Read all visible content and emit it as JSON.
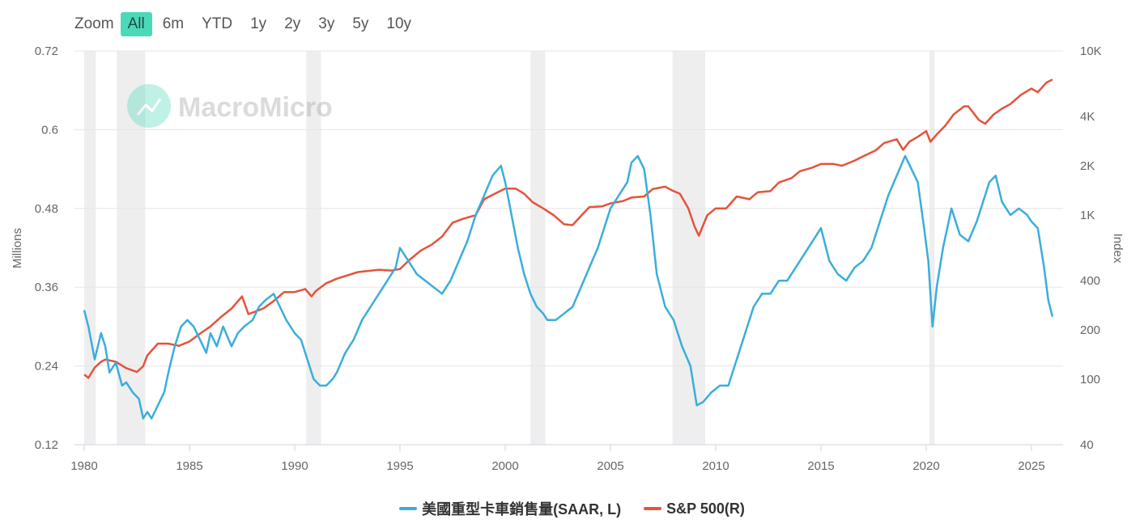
{
  "zoom": {
    "label": "Zoom",
    "buttons": [
      {
        "label": "All",
        "active": true
      },
      {
        "label": "6m",
        "active": false
      },
      {
        "label": "YTD",
        "active": false
      },
      {
        "label": "1y",
        "active": false
      },
      {
        "label": "2y",
        "active": false
      },
      {
        "label": "3y",
        "active": false
      },
      {
        "label": "5y",
        "active": false
      },
      {
        "label": "10y",
        "active": false
      }
    ]
  },
  "watermark": "MacroMicro",
  "colors": {
    "truck": "#3aaedb",
    "sp500": "#e4533b",
    "recession": "#eeeeee",
    "grid": "#e6e6e6"
  },
  "chart_data": {
    "type": "line",
    "xlabel": "",
    "x_ticks": [
      "1980",
      "1985",
      "1990",
      "1995",
      "2000",
      "2005",
      "2010",
      "2015",
      "2020",
      "2025"
    ],
    "x_range": [
      1980.0,
      2026.5
    ],
    "y_left": {
      "label": "Millions",
      "range": [
        0.12,
        0.72
      ],
      "ticks": [
        "0.12",
        "0.24",
        "0.36",
        "0.48",
        "0.6",
        "0.72"
      ]
    },
    "y_right": {
      "label": "Index",
      "scale": "log",
      "range": [
        40,
        10000
      ],
      "ticks": [
        "40",
        "100",
        "200",
        "400",
        "1K",
        "2K",
        "4K",
        "10K"
      ],
      "tick_values": [
        40,
        100,
        200,
        400,
        1000,
        2000,
        4000,
        10000
      ]
    },
    "recessions": [
      [
        1980.0,
        1980.55
      ],
      [
        1981.55,
        1982.9
      ],
      [
        1990.55,
        1991.25
      ],
      [
        2001.2,
        2001.9
      ],
      [
        2007.95,
        2009.5
      ],
      [
        2020.15,
        2020.4
      ]
    ],
    "series": [
      {
        "name": "美國重型卡車銷售量(SAAR, L)",
        "axis": "left",
        "x": [
          1980.0,
          1980.2,
          1980.5,
          1980.8,
          1981.0,
          1981.2,
          1981.5,
          1981.8,
          1982.0,
          1982.3,
          1982.6,
          1982.8,
          1983.0,
          1983.2,
          1983.5,
          1983.8,
          1984.0,
          1984.3,
          1984.6,
          1984.9,
          1985.2,
          1985.5,
          1985.8,
          1986.0,
          1986.3,
          1986.6,
          1987.0,
          1987.3,
          1987.6,
          1988.0,
          1988.3,
          1988.6,
          1989.0,
          1989.3,
          1989.6,
          1990.0,
          1990.3,
          1990.6,
          1990.9,
          1991.2,
          1991.5,
          1991.8,
          1992.0,
          1992.4,
          1992.8,
          1993.2,
          1993.6,
          1994.0,
          1994.4,
          1994.8,
          1995.0,
          1995.4,
          1995.8,
          1996.2,
          1996.6,
          1997.0,
          1997.4,
          1997.8,
          1998.2,
          1998.6,
          1999.0,
          1999.4,
          1999.8,
          2000.0,
          2000.3,
          2000.6,
          2000.9,
          2001.2,
          2001.5,
          2001.8,
          2002.0,
          2002.4,
          2002.8,
          2003.2,
          2003.6,
          2004.0,
          2004.4,
          2004.8,
          2005.0,
          2005.4,
          2005.8,
          2006.0,
          2006.3,
          2006.6,
          2006.9,
          2007.2,
          2007.6,
          2008.0,
          2008.4,
          2008.8,
          2009.1,
          2009.4,
          2009.8,
          2010.2,
          2010.6,
          2011.0,
          2011.4,
          2011.8,
          2012.2,
          2012.6,
          2013.0,
          2013.4,
          2013.8,
          2014.2,
          2014.6,
          2015.0,
          2015.4,
          2015.8,
          2016.2,
          2016.6,
          2017.0,
          2017.4,
          2017.8,
          2018.2,
          2018.6,
          2019.0,
          2019.3,
          2019.6,
          2019.9,
          2020.1,
          2020.3,
          2020.5,
          2020.8,
          2021.2,
          2021.6,
          2022.0,
          2022.4,
          2022.8,
          2023.0,
          2023.3,
          2023.6,
          2024.0,
          2024.4,
          2024.8,
          2025.0,
          2025.3,
          2025.6,
          2025.8,
          2026.0
        ],
        "values": [
          0.325,
          0.3,
          0.25,
          0.29,
          0.27,
          0.23,
          0.245,
          0.21,
          0.215,
          0.2,
          0.19,
          0.16,
          0.17,
          0.16,
          0.18,
          0.2,
          0.23,
          0.27,
          0.3,
          0.31,
          0.3,
          0.28,
          0.26,
          0.29,
          0.27,
          0.3,
          0.27,
          0.29,
          0.3,
          0.31,
          0.33,
          0.34,
          0.35,
          0.33,
          0.31,
          0.29,
          0.28,
          0.25,
          0.22,
          0.21,
          0.21,
          0.22,
          0.23,
          0.26,
          0.28,
          0.31,
          0.33,
          0.35,
          0.37,
          0.39,
          0.42,
          0.4,
          0.38,
          0.37,
          0.36,
          0.35,
          0.37,
          0.4,
          0.43,
          0.47,
          0.5,
          0.53,
          0.545,
          0.52,
          0.47,
          0.42,
          0.38,
          0.35,
          0.33,
          0.32,
          0.31,
          0.31,
          0.32,
          0.33,
          0.36,
          0.39,
          0.42,
          0.46,
          0.48,
          0.5,
          0.52,
          0.55,
          0.56,
          0.54,
          0.47,
          0.38,
          0.33,
          0.31,
          0.27,
          0.24,
          0.18,
          0.185,
          0.2,
          0.21,
          0.21,
          0.25,
          0.29,
          0.33,
          0.35,
          0.35,
          0.37,
          0.37,
          0.39,
          0.41,
          0.43,
          0.45,
          0.4,
          0.38,
          0.37,
          0.39,
          0.4,
          0.42,
          0.46,
          0.5,
          0.53,
          0.56,
          0.54,
          0.52,
          0.45,
          0.4,
          0.3,
          0.36,
          0.42,
          0.48,
          0.44,
          0.43,
          0.46,
          0.5,
          0.52,
          0.53,
          0.49,
          0.47,
          0.48,
          0.47,
          0.46,
          0.45,
          0.39,
          0.34,
          0.315
        ]
      },
      {
        "name": "S&P 500(R)",
        "axis": "right",
        "x": [
          1980.0,
          1980.2,
          1980.5,
          1980.8,
          1981.0,
          1981.5,
          1982.0,
          1982.5,
          1982.8,
          1983.0,
          1983.5,
          1984.0,
          1984.5,
          1985.0,
          1985.5,
          1986.0,
          1986.5,
          1987.0,
          1987.5,
          1987.8,
          1988.0,
          1988.5,
          1989.0,
          1989.5,
          1990.0,
          1990.5,
          1990.8,
          1991.0,
          1991.5,
          1992.0,
          1993.0,
          1994.0,
          1994.6,
          1995.0,
          1995.5,
          1996.0,
          1996.5,
          1997.0,
          1997.5,
          1998.0,
          1998.6,
          1999.0,
          1999.5,
          2000.0,
          2000.5,
          2000.9,
          2001.3,
          2001.8,
          2002.3,
          2002.8,
          2003.2,
          2003.6,
          2004.0,
          2004.6,
          2005.0,
          2005.6,
          2006.0,
          2006.6,
          2007.0,
          2007.6,
          2007.9,
          2008.3,
          2008.7,
          2009.0,
          2009.2,
          2009.6,
          2010.0,
          2010.5,
          2011.0,
          2011.6,
          2012.0,
          2012.6,
          2013.0,
          2013.6,
          2014.0,
          2014.6,
          2015.0,
          2015.6,
          2016.0,
          2016.6,
          2017.0,
          2017.6,
          2018.0,
          2018.6,
          2018.9,
          2019.2,
          2019.6,
          2020.0,
          2020.2,
          2020.5,
          2020.9,
          2021.3,
          2021.8,
          2022.0,
          2022.5,
          2022.8,
          2023.2,
          2023.6,
          2024.0,
          2024.5,
          2025.0,
          2025.3,
          2025.7,
          2026.0
        ],
        "values": [
          107,
          102,
          118,
          128,
          132,
          128,
          117,
          111,
          120,
          140,
          165,
          165,
          160,
          170,
          190,
          210,
          240,
          270,
          320,
          250,
          255,
          270,
          300,
          340,
          340,
          355,
          320,
          345,
          385,
          410,
          450,
          465,
          460,
          470,
          540,
          610,
          660,
          740,
          900,
          950,
          1000,
          1250,
          1350,
          1450,
          1450,
          1350,
          1200,
          1100,
          1000,
          880,
          870,
          990,
          1120,
          1130,
          1180,
          1220,
          1280,
          1300,
          1440,
          1490,
          1420,
          1350,
          1100,
          850,
          750,
          1000,
          1100,
          1100,
          1300,
          1250,
          1380,
          1400,
          1580,
          1680,
          1850,
          1950,
          2050,
          2050,
          2000,
          2150,
          2280,
          2480,
          2750,
          2900,
          2500,
          2800,
          3000,
          3250,
          2800,
          3100,
          3500,
          4100,
          4600,
          4600,
          3800,
          3600,
          4100,
          4450,
          4750,
          5400,
          5900,
          5600,
          6400,
          6700
        ]
      }
    ]
  },
  "legend": [
    {
      "label": "美國重型卡車銷售量(SAAR, L)",
      "color": "#3aaedb"
    },
    {
      "label": "S&P 500(R)",
      "color": "#e4533b"
    }
  ]
}
